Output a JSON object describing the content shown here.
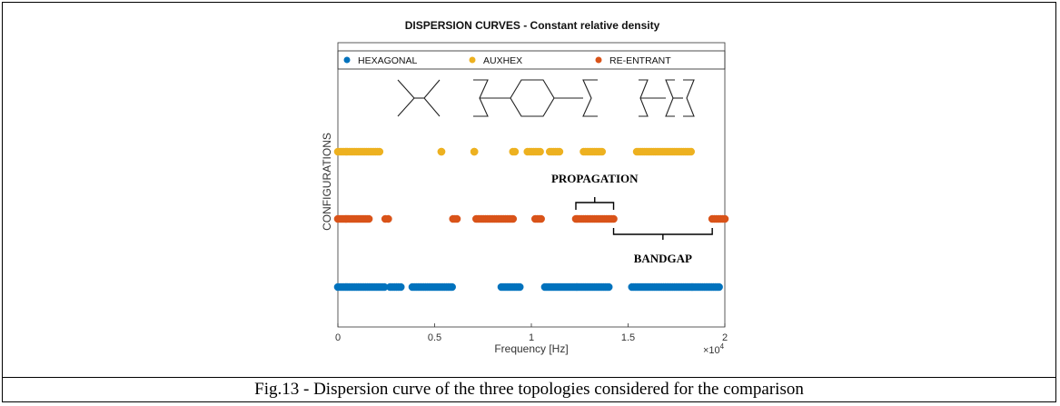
{
  "caption": "Fig.13 - Dispersion curve of the three topologies considered for the comparison",
  "chart_data": {
    "type": "scatter",
    "title": "DISPERSION CURVES - Constant relative density",
    "xlabel": "Frequency [Hz]",
    "ylabel": "CONFIGURATIONS",
    "x_exponent_label": "×10",
    "x_exponent_power": "4",
    "xlim": [
      0,
      20000
    ],
    "x_ticks": [
      0,
      5000,
      10000,
      15000,
      20000
    ],
    "x_tick_labels": [
      "0",
      "0.5",
      "1",
      "1.5",
      "2"
    ],
    "legend_placement": "top",
    "series": [
      {
        "name": "HEXAGONAL",
        "color": "#0072BD",
        "row": 1,
        "ranges": [
          [
            0,
            2400
          ],
          [
            2700,
            3250
          ],
          [
            3850,
            5900
          ],
          [
            8450,
            9400
          ],
          [
            10700,
            14000
          ],
          [
            15200,
            19700
          ]
        ]
      },
      {
        "name": "AUXHEX",
        "color": "#EDB120",
        "row": 3,
        "ranges": [
          [
            0,
            2150
          ],
          [
            5350,
            5350
          ],
          [
            7050,
            7050
          ],
          [
            9050,
            9150
          ],
          [
            9800,
            10450
          ],
          [
            10950,
            11450
          ],
          [
            12700,
            13650
          ],
          [
            15450,
            18250
          ]
        ]
      },
      {
        "name": "RE-ENTRANT",
        "color": "#D95319",
        "row": 2,
        "ranges": [
          [
            0,
            1600
          ],
          [
            2450,
            2600
          ],
          [
            5950,
            6150
          ],
          [
            7150,
            9050
          ],
          [
            10200,
            10500
          ],
          [
            12300,
            14250
          ],
          [
            19350,
            20000
          ]
        ]
      }
    ],
    "annotations": [
      {
        "text": "PROPAGATION",
        "from": 12300,
        "to": 14250,
        "side": "above"
      },
      {
        "text": "BANDGAP",
        "from": 14250,
        "to": 19350,
        "side": "below"
      }
    ]
  }
}
